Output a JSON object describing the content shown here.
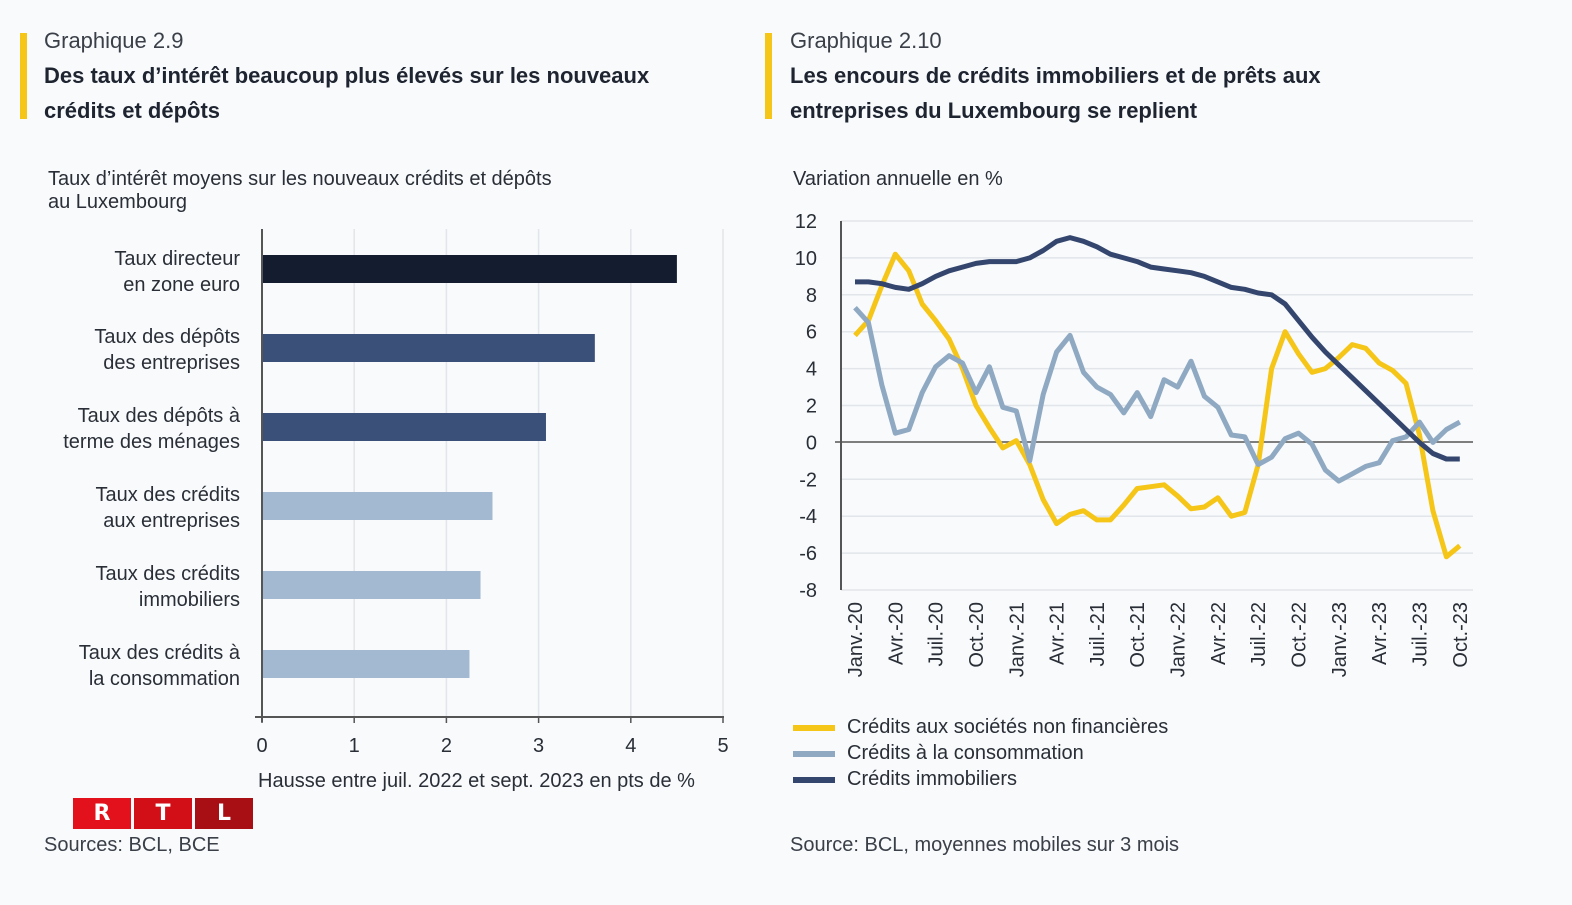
{
  "left_panel": {
    "kicker": "Graphique 2.9",
    "title_lines": [
      "Des taux d’intérêt beaucoup plus élevés sur les nouveaux",
      "crédits et dépôts"
    ],
    "subtitle_lines": [
      "Taux d’intérêt moyens sur les nouveaux crédits et dépôts",
      "au Luxembourg"
    ],
    "source": "Sources: BCL, BCE",
    "logo": {
      "letters": [
        "R",
        "T",
        "L"
      ],
      "colors": [
        "#e3111b",
        "#d20f17",
        "#a80f14"
      ]
    }
  },
  "right_panel": {
    "kicker": "Graphique 2.10",
    "title_lines": [
      "Les encours de crédits immobiliers et de prêts aux",
      "entreprises du Luxembourg se replient"
    ],
    "subtitle": "Variation annuelle en %",
    "source": "Source: BCL, moyennes mobiles sur 3 mois"
  },
  "accent_color": "#f5c518",
  "chart_data": [
    {
      "type": "bar",
      "orientation": "horizontal",
      "title": "Des taux d’intérêt beaucoup plus élevés sur les nouveaux crédits et dépôts",
      "subtitle": "Taux d’intérêt moyens sur les nouveaux crédits et dépôts au Luxembourg",
      "categories": [
        [
          "Taux directeur",
          "en zone euro"
        ],
        [
          "Taux des dépôts",
          "des entreprises"
        ],
        [
          "Taux des dépôts à",
          "terme des ménages"
        ],
        [
          "Taux des crédits",
          "aux entreprises"
        ],
        [
          "Taux des crédits",
          "immobiliers"
        ],
        [
          "Taux des crédits à",
          "la consommation"
        ]
      ],
      "values": [
        4.5,
        3.61,
        3.08,
        2.5,
        2.37,
        2.25
      ],
      "colors": [
        "#141c30",
        "#3b5078",
        "#3b5078",
        "#a3b9d1",
        "#a3b9d1",
        "#a3b9d1"
      ],
      "xlabel": "Hausse entre juil. 2022 et sept. 2023 en pts de %",
      "xlim": [
        0,
        5
      ],
      "xticks": [
        "0",
        "1",
        "2",
        "3",
        "4",
        "5"
      ],
      "grid": true
    },
    {
      "type": "line",
      "title": "Les encours de crédits immobiliers et de prêts aux entreprises du Luxembourg se replient",
      "ylabel": "Variation annuelle en %",
      "ylim": [
        -8,
        12
      ],
      "yticks": [
        "12",
        "10",
        "8",
        "6",
        "4",
        "2",
        "0",
        "-2",
        "-4",
        "-6",
        "-8"
      ],
      "x_start": "Janv.-20",
      "x_end": "Oct.-23",
      "x_frequency": "monthly",
      "xtick_labels": [
        "Janv.-20",
        "Avr.-20",
        "Juil.-20",
        "Oct.-20",
        "Janv.-21",
        "Avr.-21",
        "Juil.-21",
        "Oct.-21",
        "Janv.-22",
        "Avr.-22",
        "Juil.-22",
        "Oct.-22",
        "Janv.-23",
        "Avr.-23",
        "Juil.-23",
        "Oct.-23"
      ],
      "grid": true,
      "legend_position": "bottom-left",
      "series": [
        {
          "name": "Crédits aux sociétés non financières",
          "color": "#f5c518",
          "values": [
            5.8,
            6.6,
            8.5,
            10.2,
            9.3,
            7.5,
            6.6,
            5.6,
            4.0,
            2.0,
            0.8,
            -0.3,
            0.1,
            -1.2,
            -3.1,
            -4.4,
            -3.9,
            -3.7,
            -4.2,
            -4.2,
            -3.4,
            -2.5,
            -2.4,
            -2.3,
            -2.9,
            -3.6,
            -3.5,
            -3.0,
            -4.0,
            -3.8,
            -1.2,
            4.0,
            6.0,
            4.8,
            3.8,
            4.0,
            4.6,
            5.3,
            5.1,
            4.3,
            3.9,
            3.2,
            0.4,
            -3.7,
            -6.2,
            -5.6
          ]
        },
        {
          "name": "Crédits à la consommation",
          "color": "#8fa9c2",
          "values": [
            7.3,
            6.5,
            3.1,
            0.5,
            0.7,
            2.7,
            4.1,
            4.7,
            4.3,
            2.7,
            4.1,
            1.9,
            1.7,
            -1.0,
            2.6,
            4.9,
            5.8,
            3.8,
            3.0,
            2.6,
            1.6,
            2.7,
            1.4,
            3.4,
            3.0,
            4.4,
            2.5,
            1.9,
            0.4,
            0.3,
            -1.2,
            -0.8,
            0.2,
            0.5,
            -0.1,
            -1.5,
            -2.1,
            -1.7,
            -1.3,
            -1.1,
            0.1,
            0.3,
            1.1,
            0.0,
            0.7,
            1.1
          ]
        },
        {
          "name": "Crédits immobiliers",
          "color": "#34466e",
          "values": [
            8.7,
            8.7,
            8.6,
            8.4,
            8.3,
            8.6,
            9.0,
            9.3,
            9.5,
            9.7,
            9.8,
            9.8,
            9.8,
            10.0,
            10.4,
            10.9,
            11.1,
            10.9,
            10.6,
            10.2,
            10.0,
            9.8,
            9.5,
            9.4,
            9.3,
            9.2,
            9.0,
            8.7,
            8.4,
            8.3,
            8.1,
            8.0,
            7.5,
            6.6,
            5.7,
            4.9,
            4.2,
            3.5,
            2.8,
            2.1,
            1.4,
            0.7,
            0.0,
            -0.6,
            -0.9,
            -0.9
          ]
        }
      ]
    }
  ]
}
